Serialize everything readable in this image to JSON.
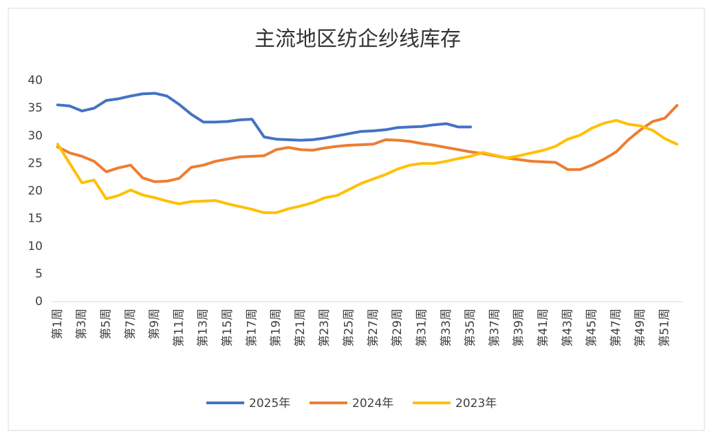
{
  "chart_data": {
    "type": "line",
    "title": "主流地区纺企纱线库存",
    "categories": [
      "第1周",
      null,
      "第3周",
      null,
      "第5周",
      null,
      "第7周",
      null,
      "第9周",
      null,
      "第11周",
      null,
      "第13周",
      null,
      "第15周",
      null,
      "第17周",
      null,
      "第19周",
      null,
      "第21周",
      null,
      "第23周",
      null,
      "第25周",
      null,
      "第27周",
      null,
      "第29周",
      null,
      "第31周",
      null,
      "第33周",
      null,
      "第35周",
      null,
      "第37周",
      null,
      "第39周",
      null,
      "第41周",
      null,
      "第43周",
      null,
      "第45周",
      null,
      "第47周",
      null,
      "第49周",
      null,
      "第51周",
      null
    ],
    "series": [
      {
        "name": "2025年",
        "color": "#4472c4",
        "values": [
          35.6,
          35.4,
          34.5,
          35.0,
          36.4,
          36.7,
          37.2,
          37.6,
          37.7,
          37.2,
          35.7,
          33.9,
          32.5,
          32.5,
          32.6,
          32.9,
          33.0,
          29.8,
          29.4,
          29.3,
          29.2,
          29.3,
          29.6,
          30.0,
          30.4,
          30.8,
          30.9,
          31.1,
          31.5,
          31.6,
          31.7,
          32.0,
          32.2,
          31.6,
          31.6,
          null,
          null,
          null,
          null,
          null,
          null,
          null,
          null,
          null,
          null,
          null,
          null,
          null,
          null,
          null,
          null,
          null
        ]
      },
      {
        "name": "2024年",
        "color": "#ed7d31",
        "values": [
          28.0,
          26.9,
          26.3,
          25.4,
          23.5,
          24.2,
          24.7,
          22.4,
          21.7,
          21.8,
          22.3,
          24.3,
          24.7,
          25.4,
          25.8,
          26.2,
          26.3,
          26.4,
          27.5,
          27.9,
          27.5,
          27.4,
          27.8,
          28.1,
          28.3,
          28.4,
          28.5,
          29.3,
          29.2,
          29.0,
          28.6,
          28.3,
          27.9,
          27.5,
          27.1,
          26.8,
          26.4,
          26.0,
          25.7,
          25.4,
          25.3,
          25.2,
          23.9,
          23.9,
          24.7,
          25.8,
          27.1,
          29.3,
          31.1,
          32.6,
          33.2,
          35.5
        ]
      },
      {
        "name": "2023年",
        "color": "#ffc000",
        "values": [
          28.5,
          25.0,
          21.5,
          22.0,
          18.6,
          19.2,
          20.2,
          19.3,
          18.8,
          18.2,
          17.7,
          18.1,
          18.2,
          18.3,
          17.7,
          17.2,
          16.7,
          16.1,
          16.1,
          16.8,
          17.3,
          17.9,
          18.8,
          19.2,
          20.3,
          21.4,
          22.2,
          23.0,
          24.0,
          24.7,
          25.0,
          25.0,
          25.4,
          25.9,
          26.3,
          27.0,
          26.5,
          26.0,
          26.4,
          26.9,
          27.4,
          28.1,
          29.4,
          30.1,
          31.4,
          32.3,
          32.8,
          32.1,
          31.8,
          31.0,
          29.5,
          28.5
        ]
      }
    ],
    "ylim": [
      0,
      40
    ],
    "yticks": [
      0,
      5,
      10,
      15,
      20,
      25,
      30,
      35,
      40
    ],
    "grid": false,
    "legend": "bottom"
  }
}
